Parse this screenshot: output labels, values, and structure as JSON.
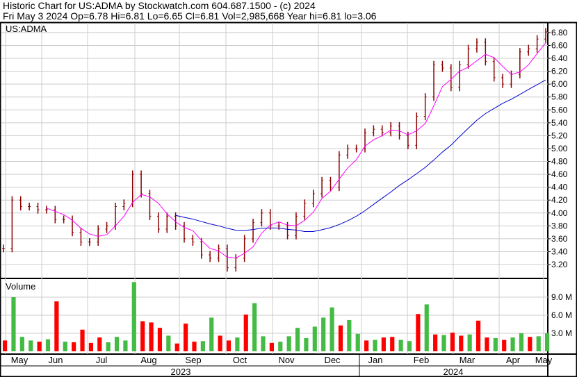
{
  "header": {
    "title": "Historic Chart for US:ADMA by Stockwatch.com 604.687.1500 - (c) 2024",
    "quote": "Fri May  3 2024  Op=6.78  Hi=6.81  Lo=6.65  Cl=6.81  Vol=2,985,668  Year hi=6.81  lo=3.06"
  },
  "chart_data": [
    {
      "type": "bar",
      "label": "US:ADMA",
      "ylim": [
        3.06,
        6.9
      ],
      "yticks": [
        "3.20",
        "3.40",
        "3.60",
        "3.80",
        "4.00",
        "4.20",
        "4.40",
        "4.60",
        "4.80",
        "5.00",
        "5.20",
        "5.40",
        "5.60",
        "5.80",
        "6.00",
        "6.20",
        "6.40",
        "6.60",
        "6.80"
      ],
      "closes": [
        3.45,
        4.2,
        4.1,
        4.1,
        4.05,
        4.05,
        3.9,
        3.9,
        3.7,
        3.55,
        3.55,
        3.75,
        3.8,
        4.1,
        4.15,
        4.6,
        4.3,
        3.95,
        3.75,
        3.95,
        3.8,
        3.6,
        3.55,
        3.35,
        3.3,
        3.45,
        3.15,
        3.3,
        3.6,
        3.85,
        4.0,
        3.8,
        3.8,
        3.65,
        3.95,
        4.15,
        4.3,
        4.5,
        4.4,
        4.9,
        5.0,
        5.0,
        5.25,
        5.3,
        5.25,
        5.35,
        5.2,
        5.05,
        5.5,
        5.8,
        6.3,
        6.25,
        5.95,
        6.3,
        6.55,
        6.65,
        6.35,
        6.1,
        6.0,
        6.15,
        6.5,
        6.55,
        6.7,
        6.81
      ],
      "colors": {
        "bars": "#8b0000",
        "ma_short": "#ff00ff",
        "ma_long": "#0000cc"
      }
    },
    {
      "type": "bar",
      "label": "Volume",
      "yticks": [
        "3.0 M",
        "6.0 M",
        "9.0 M"
      ],
      "unit": "M",
      "values": [
        1.8,
        9,
        2.4,
        1.8,
        1.6,
        2,
        8.3,
        1.6,
        1.5,
        3.6,
        1.4,
        2.3,
        1.5,
        2.4,
        1.8,
        11.5,
        5,
        4.8,
        3.9,
        2.6,
        1.3,
        4.6,
        1.6,
        1.7,
        5.6,
        2.6,
        1.8,
        2.3,
        6.1,
        8,
        2.5,
        1.4,
        1.6,
        2.5,
        3.9,
        2.2,
        4.1,
        5.6,
        7.3,
        4.3,
        5.2,
        2.9,
        1.8,
        1.9,
        2.3,
        2.4,
        1.9,
        1.7,
        6.2,
        7.8,
        2.8,
        2.7,
        3.1,
        2.6,
        2.8,
        5.1,
        2.3,
        2.2,
        1.9,
        2.3,
        3,
        2.4,
        2.5,
        3
      ],
      "up": [
        false,
        true,
        true,
        true,
        false,
        true,
        false,
        true,
        false,
        false,
        false,
        false,
        true,
        true,
        true,
        true,
        false,
        false,
        false,
        true,
        false,
        false,
        false,
        true,
        true,
        false,
        false,
        true,
        false,
        true,
        true,
        false,
        true,
        true,
        true,
        true,
        true,
        true,
        true,
        false,
        true,
        true,
        false,
        true,
        false,
        false,
        true,
        true,
        false,
        true,
        false,
        true,
        false,
        false,
        true,
        false,
        false,
        true,
        false,
        true,
        true,
        false,
        true,
        true
      ],
      "colors": {
        "up": "#44bb44",
        "down": "#ff0000"
      }
    },
    {
      "type": "axis",
      "months": [
        "May",
        "Jun",
        "Jul",
        "Aug",
        "Sep",
        "Oct",
        "Nov",
        "Dec",
        "Jan",
        "Feb",
        "Mar",
        "Apr",
        "May"
      ],
      "years": [
        "2023",
        "2024"
      ]
    }
  ]
}
